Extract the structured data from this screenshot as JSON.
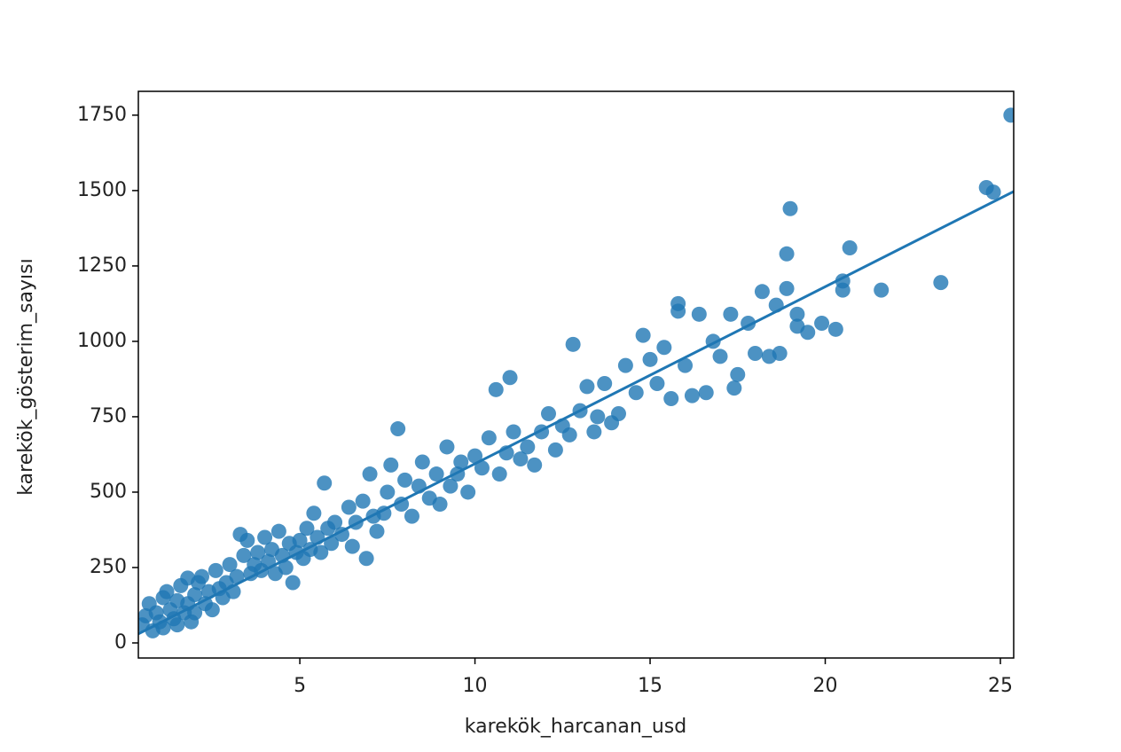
{
  "chart_data": {
    "type": "scatter",
    "x_label": "karekök_harcanan_usd",
    "y_label": "karekök_gösterim_sayısı",
    "xlim": [
      0.39,
      25.38
    ],
    "ylim": [
      -50,
      1829
    ],
    "xticks": [
      5,
      10,
      15,
      20,
      25
    ],
    "yticks": [
      0,
      250,
      500,
      750,
      1000,
      1250,
      1500,
      1750
    ],
    "grid": false,
    "series": [
      {
        "type": "scatter",
        "color": "#1f77b4",
        "x": [
          0.5,
          0.6,
          0.7,
          0.8,
          0.9,
          1.0,
          1.1,
          1.1,
          1.2,
          1.3,
          1.4,
          1.5,
          1.5,
          1.6,
          1.7,
          1.8,
          1.8,
          1.9,
          2.0,
          2.0,
          2.1,
          2.2,
          2.3,
          2.4,
          2.5,
          2.6,
          2.7,
          2.8,
          2.9,
          3.0,
          3.1,
          3.2,
          3.3,
          3.4,
          3.5,
          3.6,
          3.7,
          3.8,
          3.9,
          4.0,
          4.1,
          4.2,
          4.3,
          4.4,
          4.5,
          4.6,
          4.7,
          4.8,
          4.9,
          5.0,
          5.1,
          5.2,
          5.3,
          5.4,
          5.5,
          5.6,
          5.7,
          5.8,
          5.9,
          6.0,
          6.2,
          6.4,
          6.5,
          6.6,
          6.8,
          6.9,
          7.0,
          7.1,
          7.2,
          7.4,
          7.5,
          7.6,
          7.8,
          7.9,
          8.0,
          8.2,
          8.4,
          8.5,
          8.7,
          8.9,
          9.0,
          9.2,
          9.3,
          9.5,
          9.6,
          9.8,
          10.0,
          10.2,
          10.4,
          10.6,
          10.7,
          10.9,
          11.0,
          11.1,
          11.3,
          11.5,
          11.7,
          11.9,
          12.1,
          12.3,
          12.5,
          12.7,
          12.8,
          13.0,
          13.2,
          13.4,
          13.5,
          13.7,
          13.9,
          14.1,
          14.3,
          14.6,
          14.8,
          15.0,
          15.2,
          15.4,
          15.6,
          15.8,
          15.8,
          16.0,
          16.2,
          16.4,
          16.6,
          16.8,
          17.0,
          17.3,
          17.4,
          17.5,
          17.8,
          18.0,
          18.2,
          18.4,
          18.6,
          18.7,
          18.9,
          18.9,
          19.0,
          19.2,
          19.2,
          19.5,
          19.9,
          20.3,
          20.5,
          20.5,
          20.7,
          21.6,
          23.3,
          24.6,
          24.8,
          25.3
        ],
        "values": [
          60,
          90,
          130,
          40,
          100,
          70,
          50,
          150,
          170,
          110,
          80,
          60,
          140,
          190,
          100,
          215,
          130,
          70,
          100,
          160,
          200,
          220,
          130,
          170,
          110,
          240,
          180,
          150,
          200,
          260,
          170,
          220,
          360,
          290,
          340,
          230,
          260,
          300,
          240,
          350,
          270,
          310,
          230,
          370,
          290,
          250,
          330,
          200,
          300,
          340,
          280,
          380,
          310,
          430,
          350,
          300,
          530,
          380,
          330,
          400,
          360,
          450,
          320,
          400,
          470,
          280,
          560,
          420,
          370,
          430,
          500,
          590,
          710,
          460,
          540,
          420,
          520,
          600,
          480,
          560,
          460,
          650,
          520,
          560,
          600,
          500,
          620,
          580,
          680,
          840,
          560,
          630,
          880,
          700,
          610,
          650,
          590,
          700,
          760,
          640,
          720,
          690,
          990,
          770,
          850,
          700,
          750,
          860,
          730,
          760,
          920,
          830,
          1020,
          940,
          860,
          980,
          810,
          1125,
          1100,
          920,
          820,
          1090,
          830,
          1000,
          950,
          1090,
          845,
          890,
          1060,
          960,
          1165,
          950,
          1120,
          960,
          1175,
          1290,
          1440,
          1090,
          1050,
          1030,
          1060,
          1040,
          1200,
          1170,
          1310,
          1170,
          1195,
          1510,
          1495,
          1750
        ]
      },
      {
        "type": "line",
        "color": "#1f77b4",
        "x": [
          0.39,
          25.38
        ],
        "values": [
          30,
          1497
        ]
      }
    ]
  }
}
